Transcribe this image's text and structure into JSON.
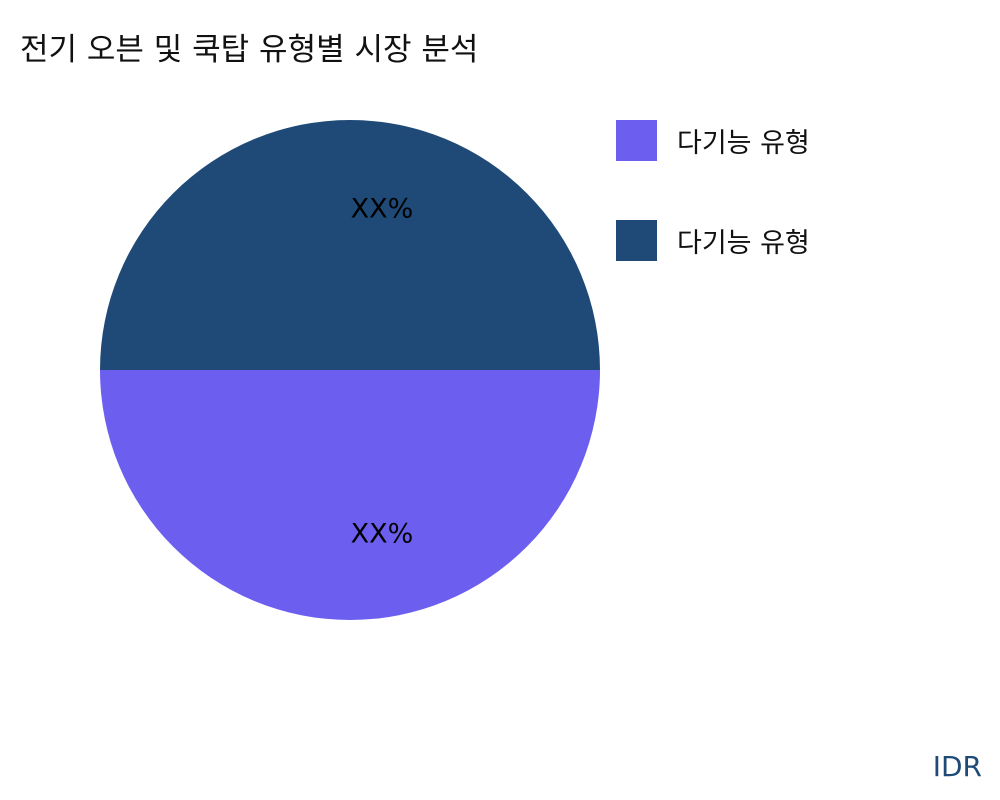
{
  "chart_data": {
    "type": "pie",
    "title": "전기 오븐 및 쿡탑 유형별 시장 분석",
    "slices": [
      {
        "name": "다기능 유형",
        "value": 50,
        "label": "XX%",
        "color": "#6c5ff0"
      },
      {
        "name": "다기능 유형",
        "value": 50,
        "label": "XX%",
        "color": "#1f4a77"
      }
    ],
    "legend_position": "right"
  },
  "brand": "IDR"
}
